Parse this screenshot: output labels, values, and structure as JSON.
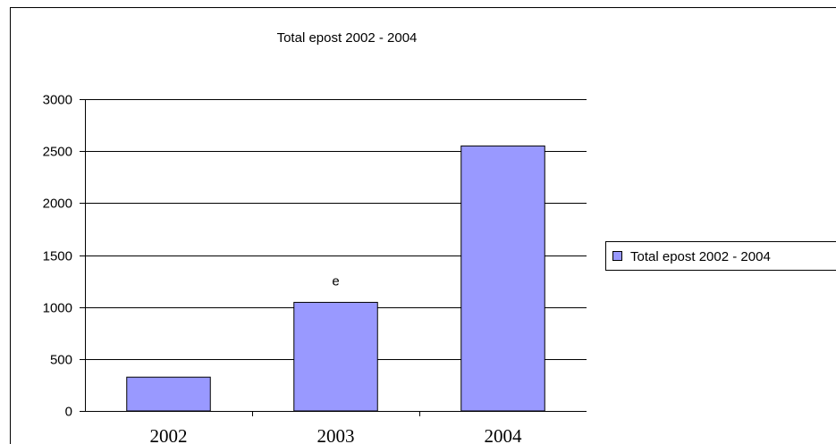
{
  "chart_data": {
    "type": "bar",
    "title": "Total epost 2002 - 2004",
    "categories": [
      "2002",
      "2003",
      "2004"
    ],
    "series": [
      {
        "name": "Total epost 2002 - 2004",
        "values": [
          325,
          1045,
          2550
        ]
      }
    ],
    "annotations": [
      {
        "category": "2003",
        "text": "e"
      }
    ],
    "ylim": [
      0,
      3000
    ],
    "yticks": [
      "0",
      "500",
      "1000",
      "1500",
      "2000",
      "2500",
      "3000"
    ],
    "grid": true,
    "legend": "right",
    "colors": {
      "bar": "#9999ff",
      "bar_stroke": "#000000",
      "grid": "#000000"
    }
  }
}
